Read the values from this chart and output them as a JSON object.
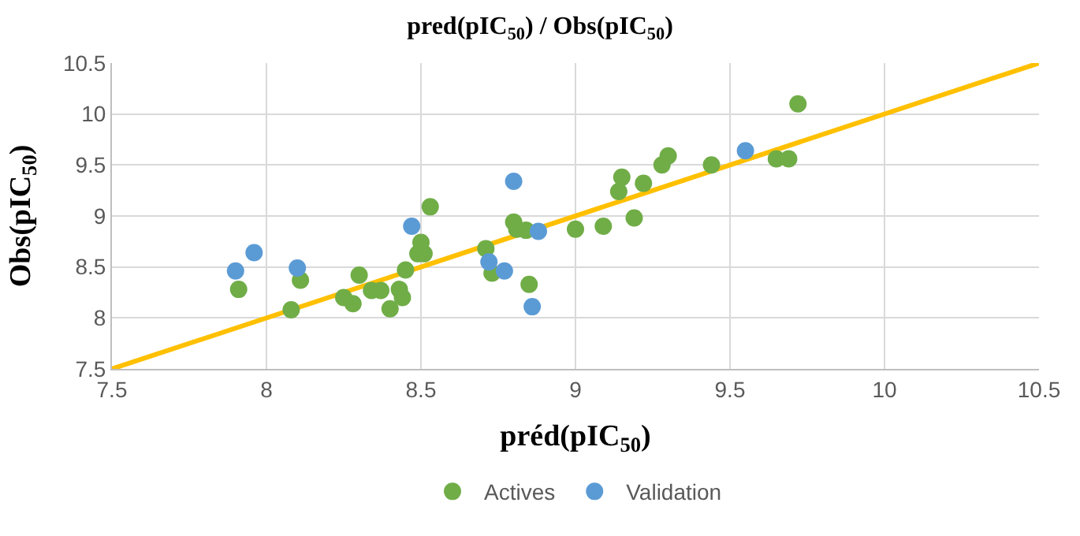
{
  "chart_data": {
    "type": "scatter",
    "title": "pred(pIC$_{50}$) / Obs(pIC$_{50}$)",
    "xlabel": "préd(pIC$_{50}$)",
    "ylabel": "Obs(pIC$_{50}$)",
    "xlim": [
      7.5,
      10.5
    ],
    "xticks": [
      7.5,
      8,
      8.5,
      9,
      9.5,
      10,
      10.5
    ],
    "ylim": [
      7.5,
      10.5
    ],
    "yticks": [
      7.5,
      8,
      8.5,
      9,
      9.5,
      10,
      10.5
    ],
    "grid": true,
    "legend": "bottom",
    "marker": "circle",
    "series": [
      {
        "name": "Actives",
        "color": "#70ad47",
        "x": [
          7.91,
          8.11,
          8.08,
          8.3,
          8.25,
          8.28,
          8.34,
          8.37,
          8.4,
          8.43,
          8.44,
          8.45,
          8.49,
          8.51,
          8.5,
          8.53,
          8.71,
          8.73,
          8.8,
          8.81,
          8.84,
          8.85,
          9.0,
          9.09,
          9.15,
          9.14,
          9.22,
          9.19,
          9.28,
          9.3,
          9.44,
          9.65,
          9.69,
          9.72
        ],
        "values": [
          8.28,
          8.37,
          8.08,
          8.42,
          8.2,
          8.14,
          8.27,
          8.27,
          8.09,
          8.28,
          8.2,
          8.47,
          8.63,
          8.63,
          8.74,
          9.09,
          8.68,
          8.44,
          8.94,
          8.87,
          8.86,
          8.33,
          8.87,
          8.9,
          9.38,
          9.24,
          9.32,
          8.98,
          9.5,
          9.59,
          9.5,
          9.56,
          9.56,
          10.1
        ]
      },
      {
        "name": "Validation",
        "color": "#5b9bd5",
        "x": [
          7.9,
          7.96,
          8.1,
          8.47,
          8.8,
          8.72,
          8.77,
          8.86,
          8.88,
          9.55
        ],
        "values": [
          8.46,
          8.64,
          8.49,
          8.9,
          9.34,
          8.55,
          8.46,
          8.11,
          8.85,
          9.64
        ]
      },
      {
        "type": "line",
        "color": "#ffc000",
        "x": [
          7.5,
          10.5
        ],
        "values": [
          7.5,
          10.5
        ],
        "marker": "none",
        "line_style": "solid"
      }
    ]
  }
}
